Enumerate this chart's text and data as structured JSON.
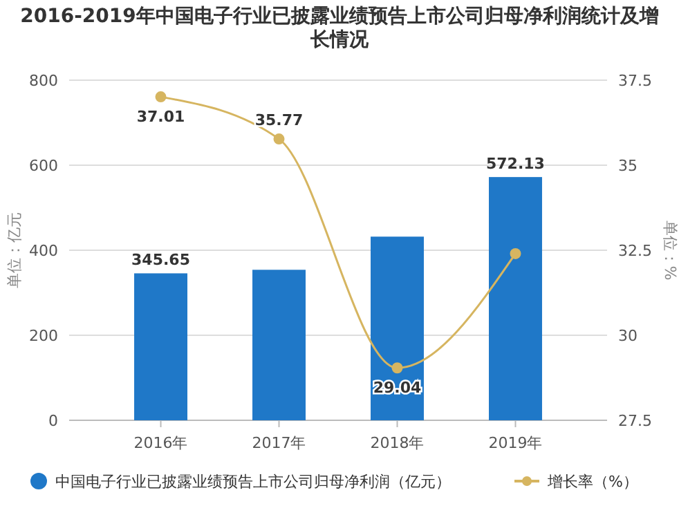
{
  "chart_data": {
    "type": "bar",
    "title": "2016-2019年中国电子行业已披露业绩预告上市公司归母净利润统计及增长情况",
    "categories": [
      "2016年",
      "2017年",
      "2018年",
      "2019年"
    ],
    "series": [
      {
        "name": "中国电子行业已披露业绩预告上市公司归母净利润（亿元）",
        "color": "#1f78c8",
        "values": [
          345.65,
          354,
          432,
          572.13
        ],
        "value_labels": [
          "345.65",
          null,
          null,
          "572.13"
        ]
      },
      {
        "name": "增长率（%）",
        "type": "line",
        "axis": "y2",
        "color": "#d6b560",
        "values": [
          37.01,
          35.77,
          29.04,
          32.4
        ],
        "value_labels": [
          "37.01",
          "35.77",
          "29.04",
          null
        ]
      }
    ],
    "ylabel": "单位：亿元",
    "y2label": "单位：%",
    "ylim": [
      0,
      800
    ],
    "yticks": [
      0,
      200,
      400,
      600,
      800
    ],
    "y2lim": [
      27.5,
      37.5
    ],
    "y2ticks": [
      27.5,
      30,
      32.5,
      35,
      37.5
    ],
    "grid": "y",
    "legend": "bottom",
    "marker": "circle"
  }
}
